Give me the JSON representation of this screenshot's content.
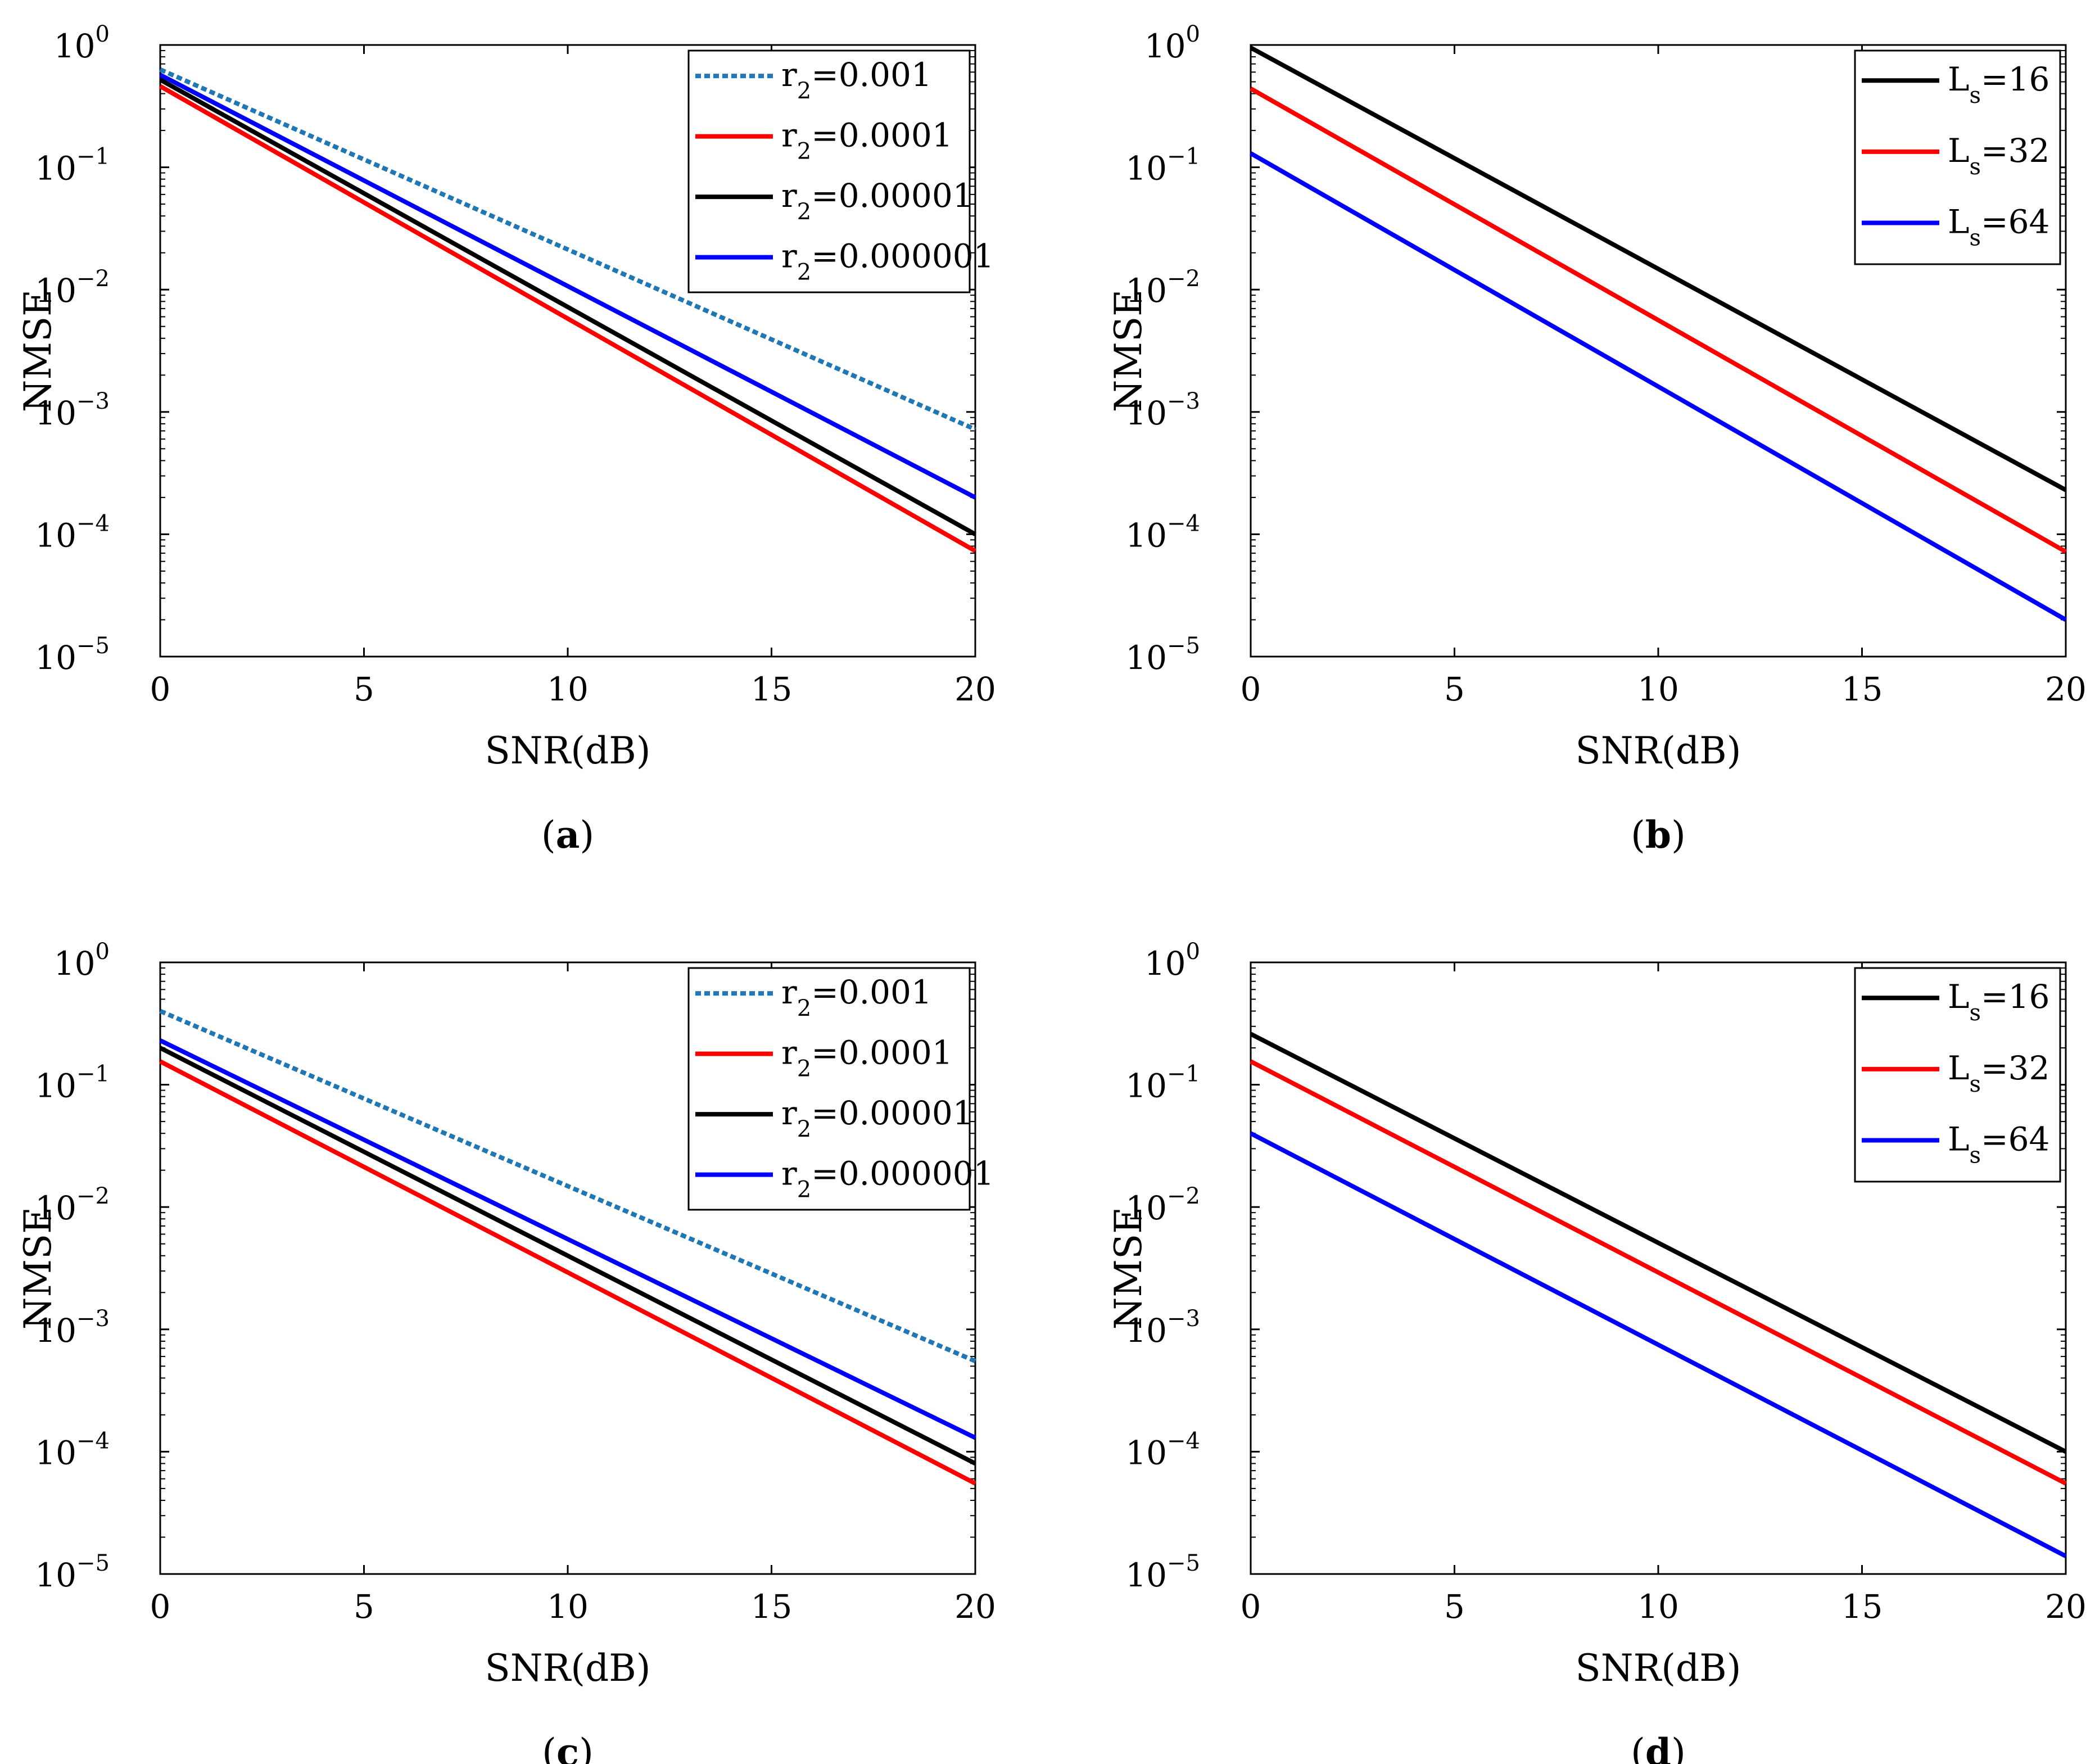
{
  "chart_data": [
    {
      "id": "a",
      "type": "line",
      "caption": {
        "open": "(",
        "letter": "a",
        "close": ")"
      },
      "xlabel": "SNR(dB)",
      "ylabel": "NMSE",
      "yscale": "log",
      "xlim": [
        0,
        20
      ],
      "ylim": [
        1e-05,
        1
      ],
      "xticks": [
        "0",
        "5",
        "10",
        "15",
        "20"
      ],
      "yticks": [
        {
          "base": "10",
          "exp": "0"
        },
        {
          "base": "10",
          "exp": "−1"
        },
        {
          "base": "10",
          "exp": "−2"
        },
        {
          "base": "10",
          "exp": "−3"
        },
        {
          "base": "10",
          "exp": "−4"
        },
        {
          "base": "10",
          "exp": "−5"
        }
      ],
      "legend_position": "top-right",
      "series": [
        {
          "prefix": "r",
          "sub": "2",
          "value": "=0.001",
          "color": "#1f77b4",
          "style": "dotted",
          "x": [
            0,
            20
          ],
          "y": [
            0.63,
            0.00072
          ]
        },
        {
          "prefix": "r",
          "sub": "2",
          "value": "=0.0001",
          "color": "#ff0000",
          "style": "solid",
          "x": [
            0,
            20
          ],
          "y": [
            0.46,
            7.3e-05
          ]
        },
        {
          "prefix": "r",
          "sub": "2",
          "value": "=0.00001",
          "color": "#000000",
          "style": "solid",
          "x": [
            0,
            20
          ],
          "y": [
            0.52,
            0.0001
          ]
        },
        {
          "prefix": "r",
          "sub": "2",
          "value": "=0.000001",
          "color": "#0000ff",
          "style": "solid",
          "x": [
            0,
            20
          ],
          "y": [
            0.57,
            0.0002
          ]
        }
      ]
    },
    {
      "id": "b",
      "type": "line",
      "caption": {
        "open": "(",
        "letter": "b",
        "close": ")"
      },
      "xlabel": "SNR(dB)",
      "ylabel": "NMSE",
      "yscale": "log",
      "xlim": [
        0,
        20
      ],
      "ylim": [
        1e-05,
        1
      ],
      "xticks": [
        "0",
        "5",
        "10",
        "15",
        "20"
      ],
      "yticks": [
        {
          "base": "10",
          "exp": "0"
        },
        {
          "base": "10",
          "exp": "−1"
        },
        {
          "base": "10",
          "exp": "−2"
        },
        {
          "base": "10",
          "exp": "−3"
        },
        {
          "base": "10",
          "exp": "−4"
        },
        {
          "base": "10",
          "exp": "−5"
        }
      ],
      "legend_position": "top-right",
      "series": [
        {
          "prefix": "L",
          "sub": "s",
          "value": "=16",
          "color": "#000000",
          "style": "solid",
          "x": [
            0,
            20
          ],
          "y": [
            0.95,
            0.00023
          ]
        },
        {
          "prefix": "L",
          "sub": "s",
          "value": "=32",
          "color": "#ff0000",
          "style": "solid",
          "x": [
            0,
            20
          ],
          "y": [
            0.44,
            7.2e-05
          ]
        },
        {
          "prefix": "L",
          "sub": "s",
          "value": "=64",
          "color": "#0000ff",
          "style": "solid",
          "x": [
            0,
            20
          ],
          "y": [
            0.13,
            2e-05
          ]
        }
      ]
    },
    {
      "id": "c",
      "type": "line",
      "caption": {
        "open": "(",
        "letter": "c",
        "close": ")"
      },
      "xlabel": "SNR(dB)",
      "ylabel": "NMSE",
      "yscale": "log",
      "xlim": [
        0,
        20
      ],
      "ylim": [
        1e-05,
        1
      ],
      "xticks": [
        "0",
        "5",
        "10",
        "15",
        "20"
      ],
      "yticks": [
        {
          "base": "10",
          "exp": "0"
        },
        {
          "base": "10",
          "exp": "−1"
        },
        {
          "base": "10",
          "exp": "−2"
        },
        {
          "base": "10",
          "exp": "−3"
        },
        {
          "base": "10",
          "exp": "−4"
        },
        {
          "base": "10",
          "exp": "−5"
        }
      ],
      "legend_position": "top-right",
      "series": [
        {
          "prefix": "r",
          "sub": "2",
          "value": "=0.001",
          "color": "#1f77b4",
          "style": "dotted",
          "x": [
            0,
            20
          ],
          "y": [
            0.4,
            0.00055
          ]
        },
        {
          "prefix": "r",
          "sub": "2",
          "value": "=0.0001",
          "color": "#ff0000",
          "style": "solid",
          "x": [
            0,
            20
          ],
          "y": [
            0.155,
            5.5e-05
          ]
        },
        {
          "prefix": "r",
          "sub": "2",
          "value": "=0.00001",
          "color": "#000000",
          "style": "solid",
          "x": [
            0,
            20
          ],
          "y": [
            0.2,
            8e-05
          ]
        },
        {
          "prefix": "r",
          "sub": "2",
          "value": "=0.000001",
          "color": "#0000ff",
          "style": "solid",
          "x": [
            0,
            20
          ],
          "y": [
            0.23,
            0.00013
          ]
        }
      ]
    },
    {
      "id": "d",
      "type": "line",
      "caption": {
        "open": "(",
        "letter": "d",
        "close": ")"
      },
      "xlabel": "SNR(dB)",
      "ylabel": "NMSE",
      "yscale": "log",
      "xlim": [
        0,
        20
      ],
      "ylim": [
        1e-05,
        1
      ],
      "xticks": [
        "0",
        "5",
        "10",
        "15",
        "20"
      ],
      "yticks": [
        {
          "base": "10",
          "exp": "0"
        },
        {
          "base": "10",
          "exp": "−1"
        },
        {
          "base": "10",
          "exp": "−2"
        },
        {
          "base": "10",
          "exp": "−3"
        },
        {
          "base": "10",
          "exp": "−4"
        },
        {
          "base": "10",
          "exp": "−5"
        }
      ],
      "legend_position": "top-right",
      "series": [
        {
          "prefix": "L",
          "sub": "s",
          "value": "=16",
          "color": "#000000",
          "style": "solid",
          "x": [
            0,
            20
          ],
          "y": [
            0.26,
            0.0001
          ]
        },
        {
          "prefix": "L",
          "sub": "s",
          "value": "=32",
          "color": "#ff0000",
          "style": "solid",
          "x": [
            0,
            20
          ],
          "y": [
            0.155,
            5.5e-05
          ]
        },
        {
          "prefix": "L",
          "sub": "s",
          "value": "=64",
          "color": "#0000ff",
          "style": "solid",
          "x": [
            0,
            20
          ],
          "y": [
            0.04,
            1.4e-05
          ]
        }
      ]
    }
  ]
}
